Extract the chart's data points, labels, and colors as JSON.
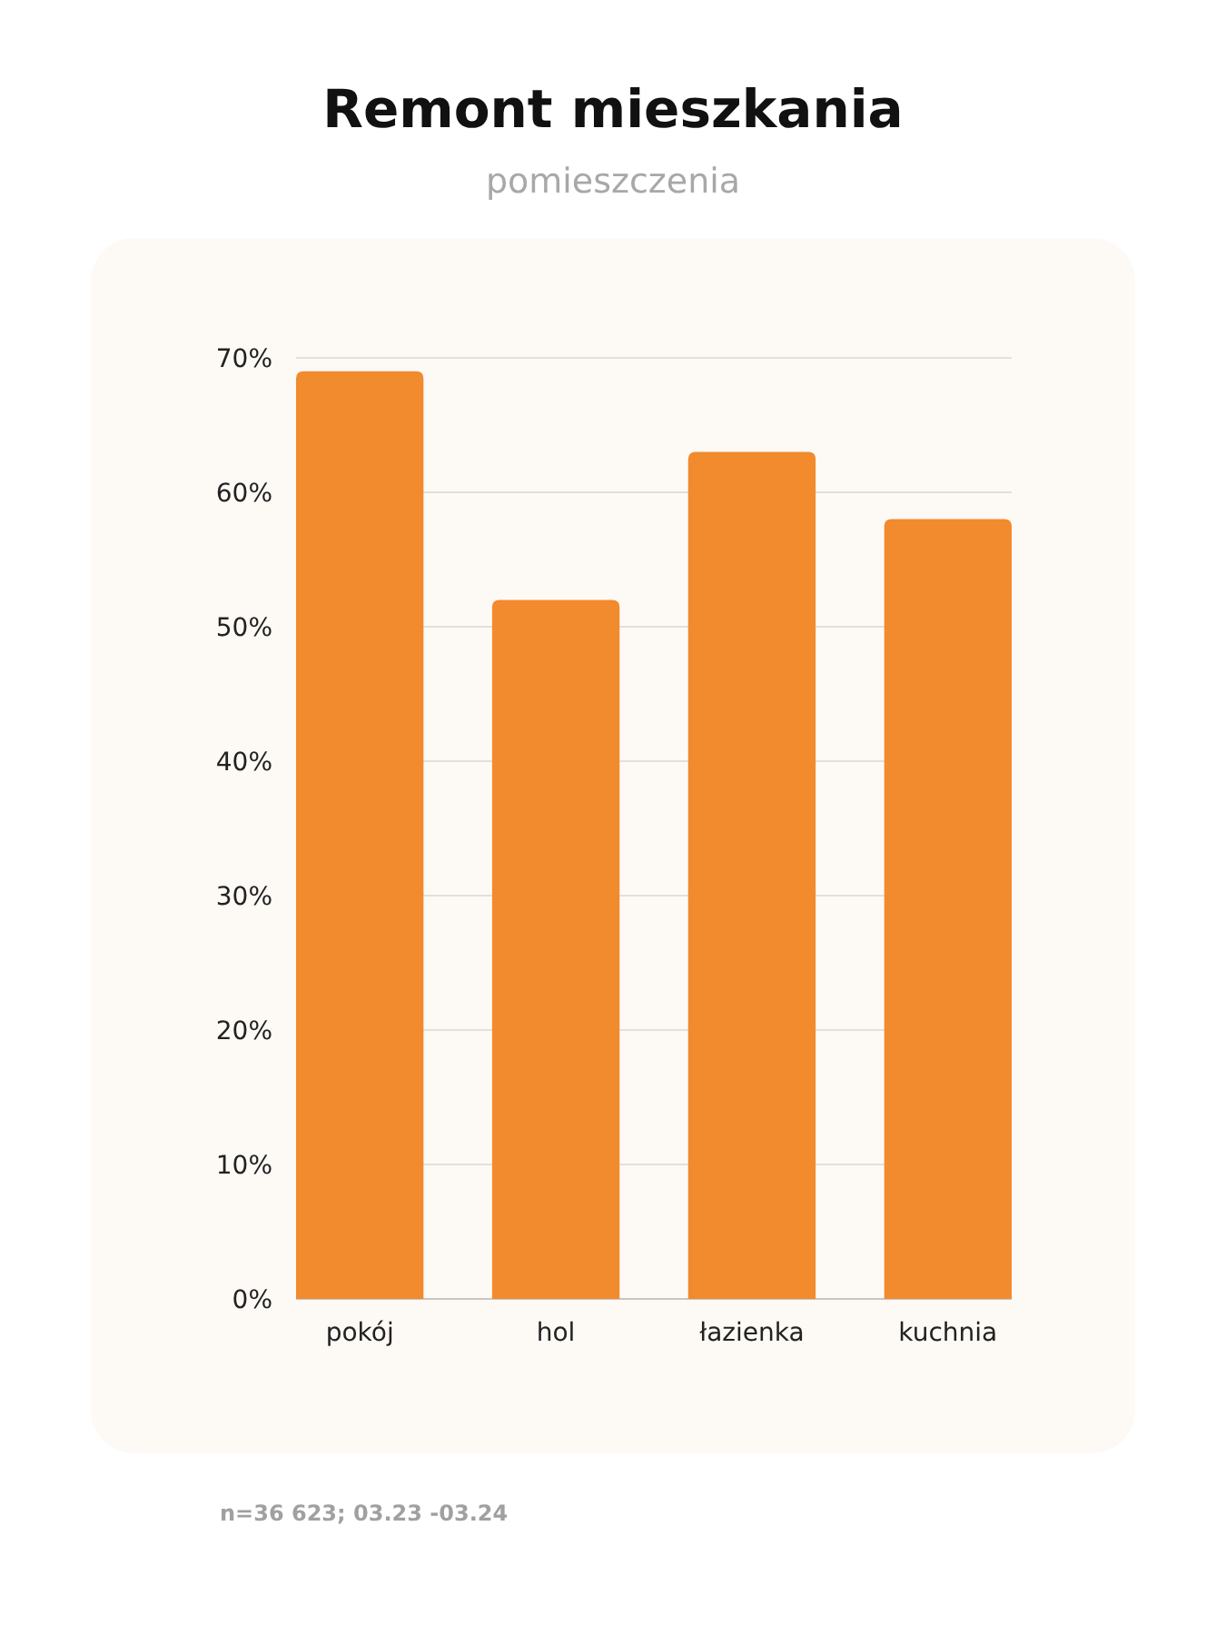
{
  "chart_data": {
    "type": "bar",
    "title": "Remont mieszkania",
    "subtitle": "pomieszczenia",
    "categories": [
      "pokój",
      "hol",
      "łazienka",
      "kuchnia"
    ],
    "values": [
      69,
      52,
      63,
      58
    ],
    "color": "#f28a2e",
    "ylim": [
      0,
      70
    ],
    "yticks": [
      {
        "value": 0,
        "label": "0%"
      },
      {
        "value": 10,
        "label": "10%"
      },
      {
        "value": 20,
        "label": "20%"
      },
      {
        "value": 30,
        "label": "30%"
      },
      {
        "value": 40,
        "label": "40%"
      },
      {
        "value": 50,
        "label": "50%"
      },
      {
        "value": 60,
        "label": "60%"
      },
      {
        "value": 70,
        "label": "70%"
      }
    ],
    "grid": "y",
    "annotations": [
      "n=36 623; 03.23 -03.24"
    ]
  }
}
